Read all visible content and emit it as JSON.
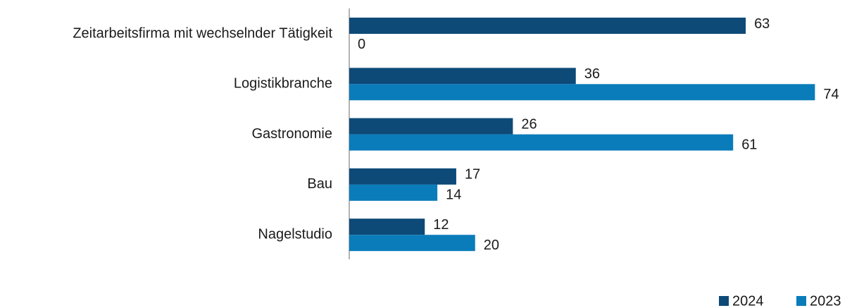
{
  "chart_data": {
    "type": "bar",
    "orientation": "horizontal",
    "categories": [
      "Zeitarbeitsfirma mit wechselnder Tätigkeit",
      "Logistikbranche",
      "Gastronomie",
      "Bau",
      "Nagelstudio"
    ],
    "series": [
      {
        "name": "2024",
        "color": "#0d4a78",
        "values": [
          63,
          36,
          26,
          17,
          12
        ]
      },
      {
        "name": "2023",
        "color": "#0a7cba",
        "values": [
          0,
          74,
          61,
          14,
          20
        ]
      }
    ],
    "xlim": [
      0,
      80
    ],
    "legend": "bottom-right"
  }
}
